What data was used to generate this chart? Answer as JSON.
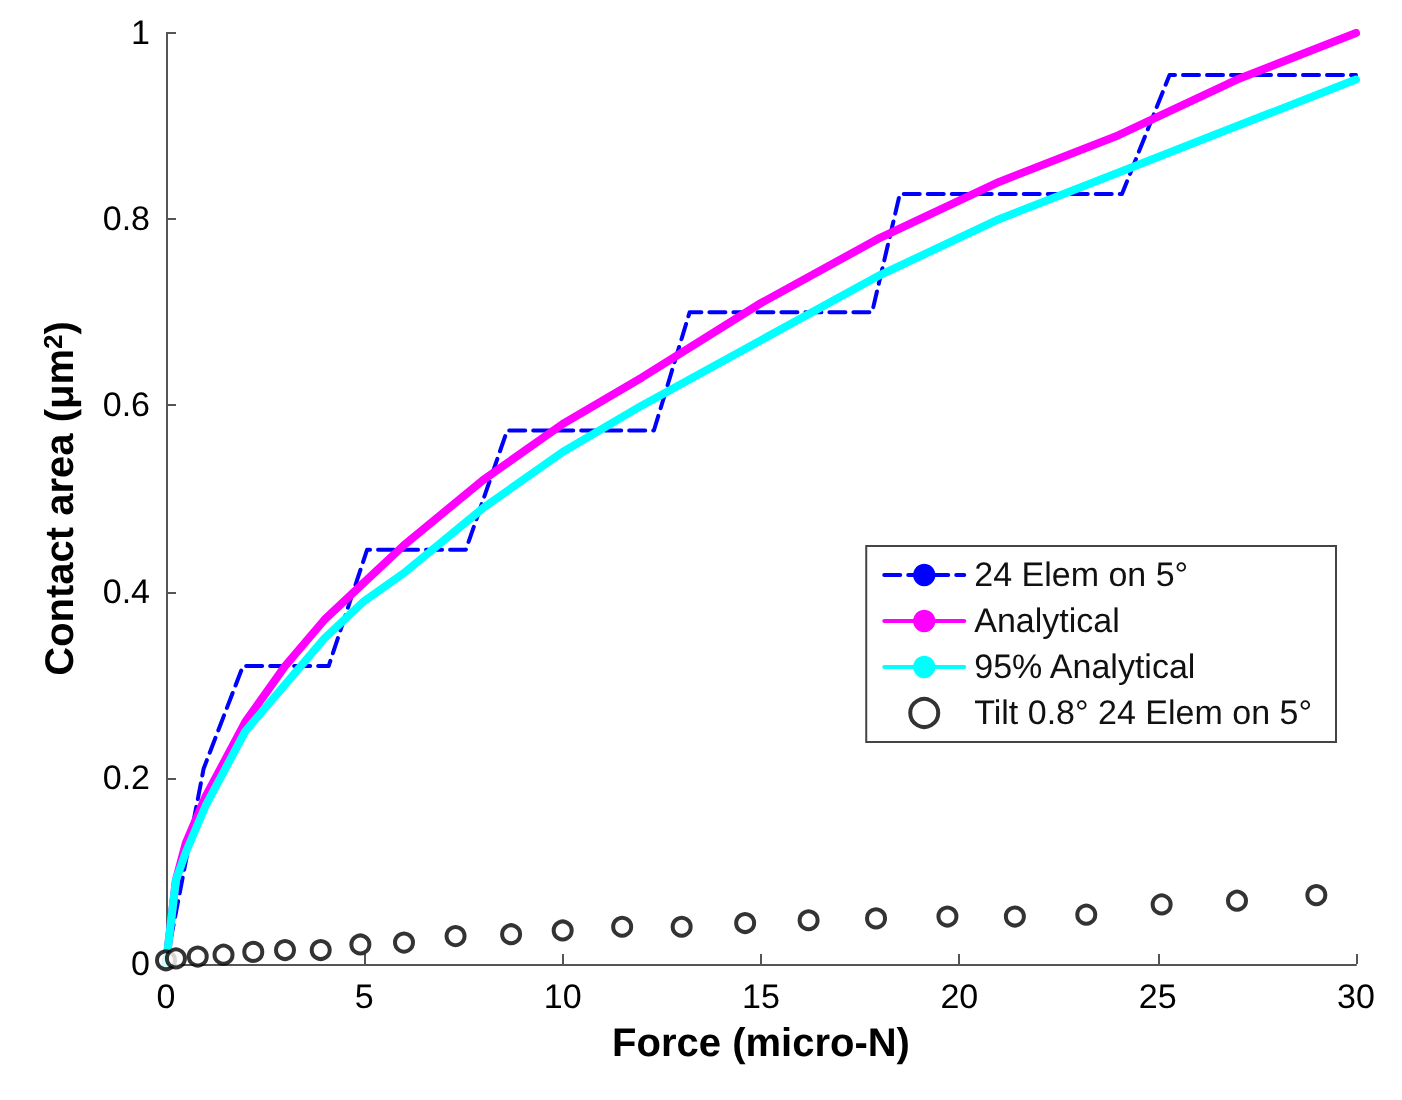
{
  "chart_data": {
    "type": "line",
    "xlabel": "Force (micro-N)",
    "ylabel": "Contact area (μm$^{2}$)",
    "xlim": [
      0,
      30
    ],
    "xticks": [
      0,
      5,
      10,
      15,
      20,
      25,
      30
    ],
    "ylim": [
      0,
      1
    ],
    "yticks": [
      0,
      0.2,
      0.4,
      0.6,
      0.8,
      1
    ],
    "grid": false,
    "legend": "right",
    "series": [
      {
        "name": "24 Elem on 5°",
        "color": "#0000ff",
        "line_style": "dashed",
        "x": [
          0,
          0.95,
          1.94,
          4.1,
          5.07,
          7.56,
          8.6,
          12.3,
          13.2,
          17.8,
          18.5,
          24.1,
          25.3,
          30
        ],
        "values": [
          0,
          0.21,
          0.32,
          0.32,
          0.445,
          0.445,
          0.573,
          0.573,
          0.7,
          0.7,
          0.827,
          0.827,
          0.955,
          0.955
        ]
      },
      {
        "name": "Analytical",
        "color": "#ff00ff",
        "line_style": "solid",
        "x": [
          0,
          0.25,
          0.5,
          1,
          2,
          3,
          4,
          5,
          6,
          8,
          10,
          12,
          15,
          18,
          21,
          24,
          27,
          30
        ],
        "values": [
          0,
          0.09,
          0.13,
          0.18,
          0.26,
          0.32,
          0.37,
          0.41,
          0.45,
          0.52,
          0.58,
          0.63,
          0.71,
          0.78,
          0.84,
          0.89,
          0.95,
          1.0
        ]
      },
      {
        "name": "95% Analytical",
        "color": "#00ffff",
        "line_style": "solid",
        "x": [
          0,
          0.25,
          0.5,
          1,
          2,
          3,
          4,
          5,
          6,
          8,
          10,
          12,
          15,
          18,
          21,
          24,
          27,
          30
        ],
        "values": [
          0,
          0.09,
          0.12,
          0.17,
          0.25,
          0.3,
          0.35,
          0.39,
          0.42,
          0.49,
          0.55,
          0.6,
          0.67,
          0.74,
          0.8,
          0.85,
          0.9,
          0.95
        ]
      },
      {
        "name": "Tilt 0.8° 24 Elem on 5°",
        "type": "scatter",
        "marker": "circle",
        "color": "#000000",
        "x": [
          0,
          0.25,
          0.8,
          1.45,
          2.2,
          3.0,
          3.9,
          4.9,
          6.0,
          7.3,
          8.7,
          10.0,
          11.5,
          13.0,
          14.6,
          16.2,
          17.9,
          19.7,
          21.4,
          23.2,
          25.1,
          27.0,
          29.0
        ],
        "values": [
          0.004,
          0.006,
          0.008,
          0.01,
          0.013,
          0.015,
          0.015,
          0.021,
          0.023,
          0.03,
          0.032,
          0.036,
          0.04,
          0.04,
          0.044,
          0.047,
          0.049,
          0.051,
          0.051,
          0.053,
          0.064,
          0.068,
          0.074
        ]
      }
    ]
  }
}
